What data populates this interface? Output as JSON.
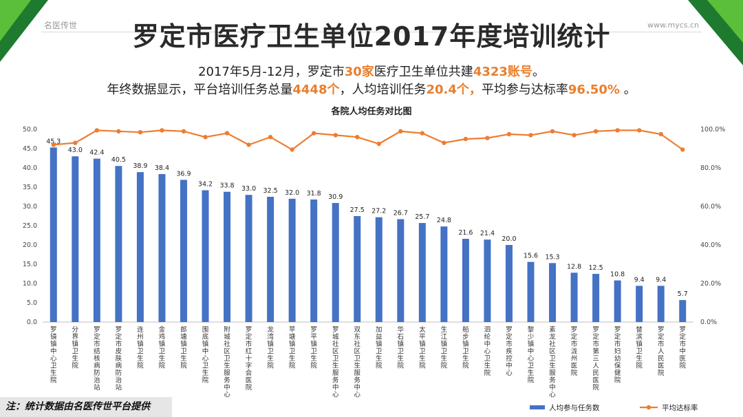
{
  "header": {
    "brand_left": "名医传世",
    "brand_right": "www.mycs.cn",
    "title": "罗定市医疗卫生单位2017年度培训统计"
  },
  "summary": {
    "line1_a": "2017年5月-12月，罗定市",
    "line1_hl1": "30家",
    "line1_b": "医疗卫生单位共建",
    "line1_hl2": "4323账号",
    "line1_c": "。",
    "line2_a": "年终数据显示，平台培训任务总量",
    "line2_hl1": "4448个",
    "line2_b": "，人均培训任务",
    "line2_hl2": "20.4个，",
    "line2_c": "平均参与达标率",
    "line2_hl3": "96.50%",
    "line2_d": " 。"
  },
  "footer": {
    "note": "注：统计数据由名医传世平台提供"
  },
  "colors": {
    "bar": "#4472c4",
    "line": "#ed7d31",
    "highlight": "#e97e2c",
    "brand_dark": "#1e7a2e",
    "brand_light": "#5cbf3a"
  },
  "chart_data": {
    "type": "bar",
    "title": "各院人均任务对比图",
    "categories": [
      "罗镜镇中心卫生院",
      "分界镇卫生院",
      "罗定市结核病防治站",
      "罗定市皮肤病防治站",
      "连州镇卫生院",
      "金鸡镇卫生院",
      "郎塘镇卫生院",
      "围底镇中心卫生院",
      "附城社区卫生服务中心",
      "罗定市红十字会医院",
      "龙湾镇卫生院",
      "苹塘镇卫生院",
      "罗平镇卫生院",
      "罗城社区卫生服务中心",
      "双东社区卫生服务中心",
      "加益镇卫生院",
      "华石镇卫生院",
      "太平镇卫生院",
      "生江镇卫生院",
      "船步镇卫生院",
      "泗纶中心卫生院",
      "罗定市疾控中心",
      "黎少镇中心卫生院",
      "素龙社区卫生服务中心",
      "罗定市泷州医院",
      "罗定市第三人民医院",
      "罗定市妇幼保健院",
      "榃滨镇卫生院",
      "罗定市人民医院",
      "罗定市中医院"
    ],
    "series": [
      {
        "name": "人均参与任务数",
        "type": "bar",
        "axis": "left",
        "values": [
          45.3,
          43.0,
          42.4,
          40.5,
          38.9,
          38.4,
          36.9,
          34.2,
          33.8,
          33.0,
          32.5,
          32.0,
          31.8,
          30.9,
          27.5,
          27.2,
          26.7,
          25.7,
          24.8,
          21.6,
          21.4,
          20.0,
          15.6,
          15.3,
          12.8,
          12.5,
          10.8,
          9.4,
          9.4,
          5.7
        ]
      },
      {
        "name": "平均达标率",
        "type": "line",
        "axis": "right",
        "values": [
          92,
          93,
          99.5,
          99,
          98.5,
          99.5,
          99,
          96,
          98,
          92,
          96,
          89.5,
          98,
          97,
          96,
          92.5,
          99,
          98,
          93,
          95,
          95.5,
          97.5,
          97,
          99,
          97,
          99,
          99.5,
          99.5,
          97.5,
          89.5
        ]
      }
    ],
    "y_left": {
      "min": 0,
      "max": 50,
      "step": 5,
      "tick_labels": [
        "0.0",
        "5.0",
        "10.0",
        "15.0",
        "20.0",
        "25.0",
        "30.0",
        "35.0",
        "40.0",
        "45.0",
        "50.0"
      ]
    },
    "y_right": {
      "min": 0,
      "max": 100,
      "step": 20,
      "tick_labels": [
        "0.0%",
        "20.0%",
        "40.0%",
        "60.0%",
        "80.0%",
        "100.0%"
      ]
    },
    "legend": {
      "position": "bottom-right",
      "entries": [
        "人均参与任务数",
        "平均达标率"
      ]
    },
    "grid": false
  }
}
